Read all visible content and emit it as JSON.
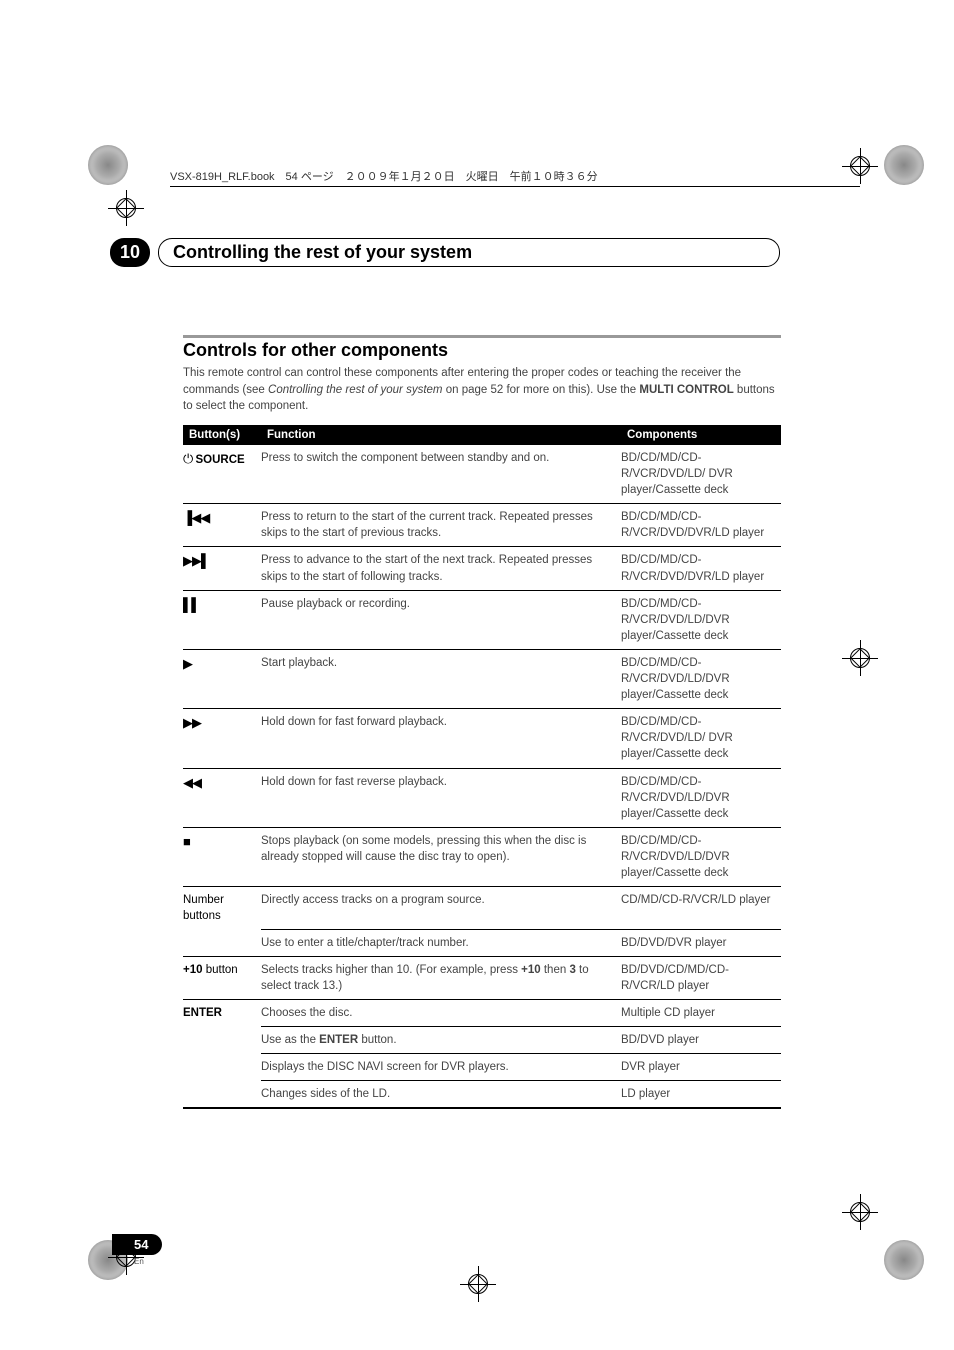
{
  "bookLine": "VSX-819H_RLF.book　54 ページ　２００９年１月２０日　火曜日　午前１０時３６分",
  "chapter": {
    "num": "10",
    "title": "Controlling the rest of your system"
  },
  "section": {
    "title": "Controls for other components",
    "intro_a": "This remote control can control these components after entering the proper codes or teaching the receiver the commands (see ",
    "intro_em": "Controlling the rest of your system",
    "intro_b": " on page 52 for more on this). Use the ",
    "intro_bold": "MULTI CONTROL",
    "intro_c": " buttons to select the component."
  },
  "headers": {
    "btn": "Button(s)",
    "fn": "Function",
    "comp": "Components"
  },
  "rows": [
    {
      "btn_sym": "⏻",
      "btn_txt": " SOURCE",
      "btn_bold": true,
      "fn": "Press to switch the component between standby and on.",
      "comp": "BD/CD/MD/CD-R/VCR/DVD/LD/ DVR player/Cassette deck"
    },
    {
      "btn_sym": "▐◀◀",
      "btn_txt": "",
      "fn": "Press to return to the start of the current track. Repeated presses skips to the start of previous tracks.",
      "comp": "BD/CD/MD/CD-R/VCR/DVD/DVR/LD player"
    },
    {
      "btn_sym": "▶▶▌",
      "btn_txt": "",
      "fn": "Press to advance to the start of the next track. Repeated presses skips to the start of following tracks.",
      "comp": "BD/CD/MD/CD-R/VCR/DVD/DVR/LD player"
    },
    {
      "btn_sym": "▌▌",
      "btn_txt": "",
      "fn": "Pause playback or recording.",
      "comp": "BD/CD/MD/CD-R/VCR/DVD/LD/DVR player/Cassette deck"
    },
    {
      "btn_sym": "▶",
      "btn_txt": "",
      "fn": "Start playback.",
      "comp": "BD/CD/MD/CD-R/VCR/DVD/LD/DVR player/Cassette deck"
    },
    {
      "btn_sym": "▶▶",
      "btn_txt": "",
      "fn": "Hold down for fast forward playback.",
      "comp": "BD/CD/MD/CD-R/VCR/DVD/LD/ DVR player/Cassette deck"
    },
    {
      "btn_sym": "◀◀",
      "btn_txt": "",
      "fn": "Hold down for fast reverse playback.",
      "comp": "BD/CD/MD/CD-R/VCR/DVD/LD/DVR player/Cassette deck"
    },
    {
      "btn_sym": "■",
      "btn_txt": "",
      "fn": "Stops playback (on some models, pressing this when the disc is already stopped will cause the disc tray to open).",
      "comp": "BD/CD/MD/CD-R/VCR/DVD/LD/DVR player/Cassette deck"
    },
    {
      "btn_sym": "",
      "btn_txt": "Number buttons",
      "fn": "Directly access tracks on a program source.",
      "comp": "CD/MD/CD-R/VCR/LD player"
    },
    {
      "btn_sym": "",
      "btn_txt": "",
      "fn": "Use to enter a title/chapter/track number.",
      "comp": "BD/DVD/DVR player"
    },
    {
      "btn_sym": "",
      "btn_txt": "+10",
      "btn_after": " button",
      "btn_bold": true,
      "fn_pre": "Selects tracks higher than 10. (For example, press ",
      "fn_b1": "+10",
      "fn_mid": " then ",
      "fn_b2": "3",
      "fn_post": " to select track 13.)",
      "comp": "BD/DVD/CD/MD/CD-R/VCR/LD player"
    },
    {
      "btn_sym": "",
      "btn_txt": "ENTER",
      "btn_bold": true,
      "fn": "Chooses the disc.",
      "comp": "Multiple CD player"
    },
    {
      "btn_sym": "",
      "btn_txt": "",
      "fn_pre": "Use as the ",
      "fn_b1": "ENTER",
      "fn_post": " button.",
      "comp": "BD/DVD player"
    },
    {
      "btn_sym": "",
      "btn_txt": "",
      "fn": "Displays the DISC NAVI screen for DVR players.",
      "comp": "DVR player"
    },
    {
      "btn_sym": "",
      "btn_txt": "",
      "fn": "Changes sides of the LD.",
      "comp": "LD player"
    }
  ],
  "pageNum": "54",
  "pageLang": "En"
}
